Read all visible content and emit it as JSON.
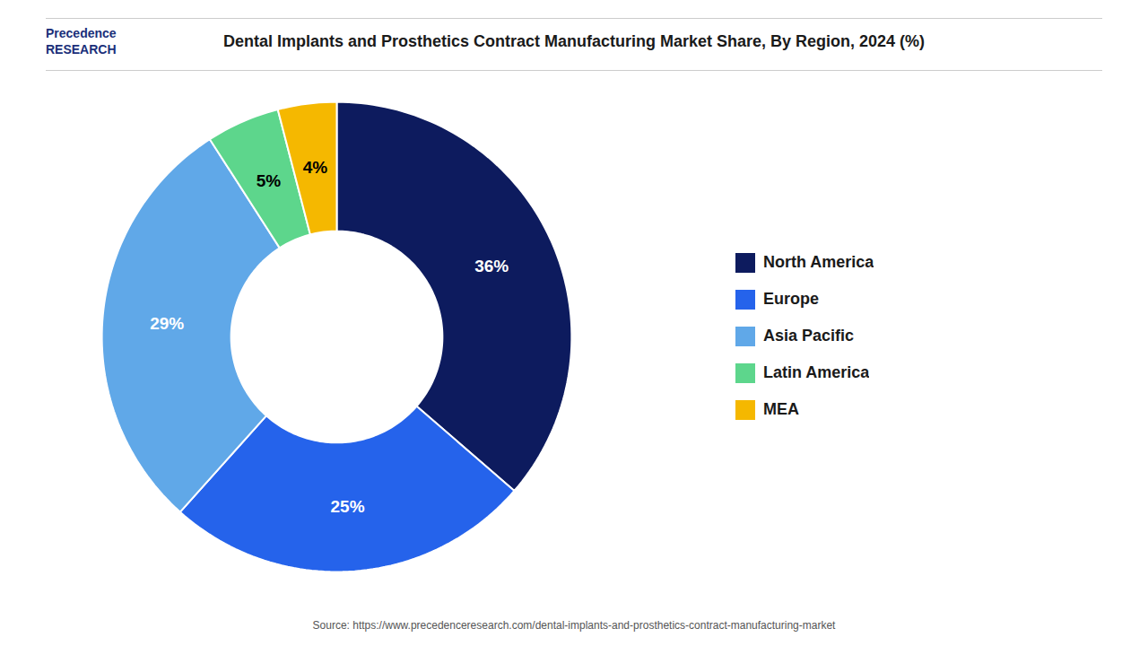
{
  "chart_data": {
    "type": "donut",
    "title": "Dental Implants and Prosthetics Contract Manufacturing Market Share, By Region, 2024 (%)",
    "categories": [
      "North America",
      "Europe",
      "Asia Pacific",
      "Latin America",
      "MEA"
    ],
    "values": [
      36,
      25,
      29,
      5,
      4
    ],
    "value_labels": [
      "36%",
      "25%",
      "29%",
      "5%",
      "4%"
    ],
    "colors": [
      "#0d1b5e",
      "#2563eb",
      "#60a8e8",
      "#5dd68c",
      "#f5b800"
    ],
    "data_labels": true,
    "legend": "right",
    "annotations": [
      "Precedence",
      "RESEARCH",
      "Source: https://www.precedenceresearch.com/dental-implants-and-prosthetics-contract-manufacturing-market"
    ]
  }
}
